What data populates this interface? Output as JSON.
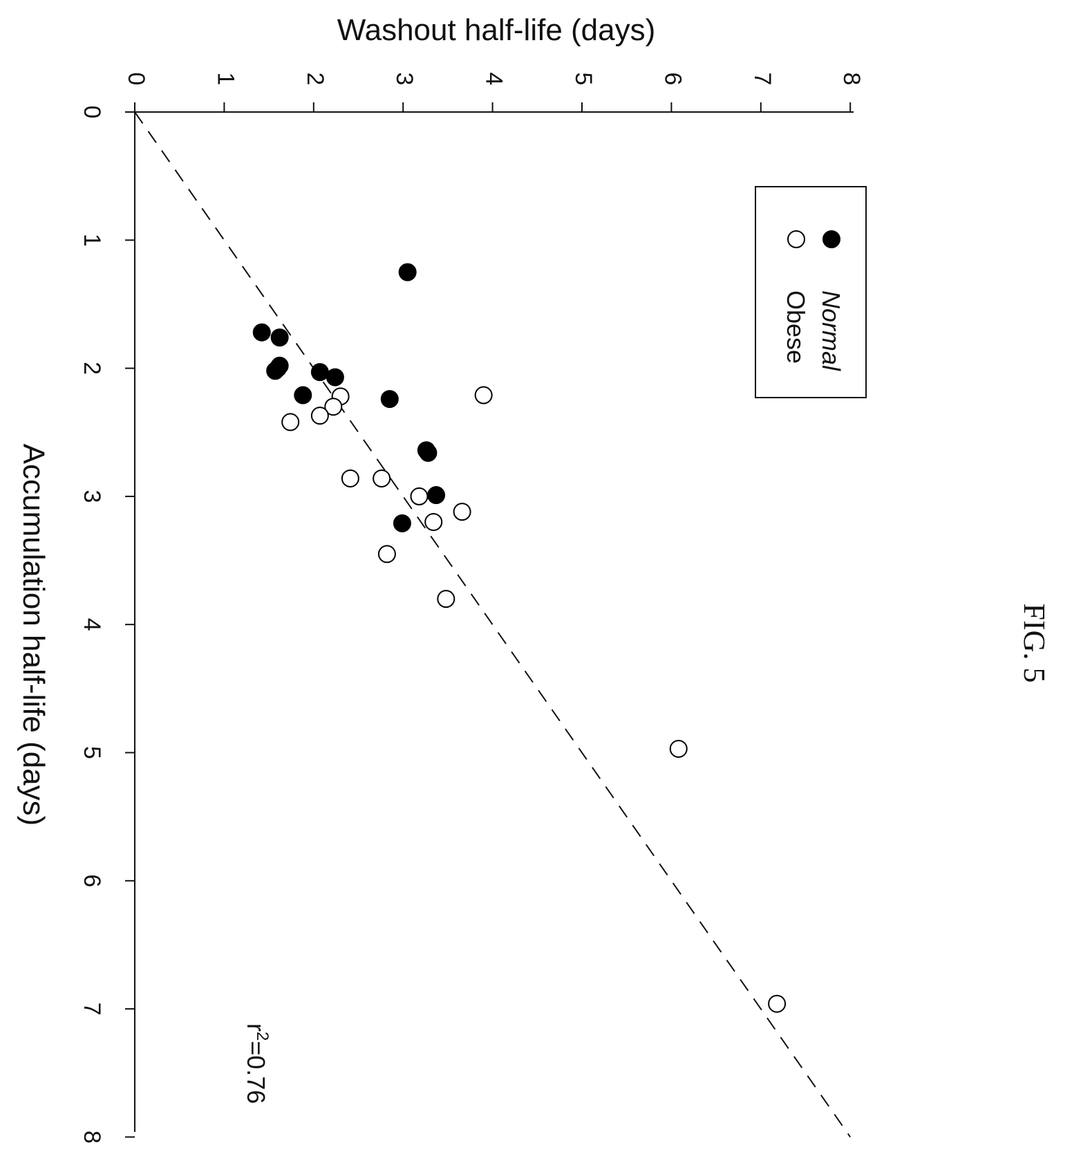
{
  "figure_label": "FIG. 5",
  "chart_data": {
    "type": "scatter",
    "xlabel": "Accumulation half-life (days)",
    "ylabel": "Washout half-life (days)",
    "xlim": [
      0,
      8
    ],
    "ylim": [
      0,
      8
    ],
    "x_ticks": [
      "0",
      "1",
      "2",
      "3",
      "4",
      "5",
      "6",
      "7",
      "8"
    ],
    "y_ticks": [
      "0",
      "1",
      "2",
      "3",
      "4",
      "5",
      "6",
      "7",
      "8"
    ],
    "legend_position": "top-left (rotated view)",
    "orientation": "rotated 90 degrees clockwise",
    "grid": false,
    "series": [
      {
        "name": "Normal",
        "marker": "filled-circle",
        "color": "#000000",
        "points": [
          {
            "x": 1.25,
            "y": 3.05
          },
          {
            "x": 1.72,
            "y": 1.42
          },
          {
            "x": 1.76,
            "y": 1.62
          },
          {
            "x": 1.98,
            "y": 1.62
          },
          {
            "x": 2.0,
            "y": 1.6
          },
          {
            "x": 2.02,
            "y": 1.57
          },
          {
            "x": 2.03,
            "y": 2.07
          },
          {
            "x": 2.07,
            "y": 2.24
          },
          {
            "x": 2.21,
            "y": 1.88
          },
          {
            "x": 2.24,
            "y": 2.85
          },
          {
            "x": 2.64,
            "y": 3.26
          },
          {
            "x": 2.66,
            "y": 3.28
          },
          {
            "x": 2.99,
            "y": 3.37
          },
          {
            "x": 3.21,
            "y": 2.99
          }
        ]
      },
      {
        "name": "Obese",
        "marker": "open-circle",
        "color": "#000000",
        "points": [
          {
            "x": 2.21,
            "y": 3.9
          },
          {
            "x": 2.22,
            "y": 2.3
          },
          {
            "x": 2.3,
            "y": 2.22
          },
          {
            "x": 2.37,
            "y": 2.07
          },
          {
            "x": 2.42,
            "y": 1.74
          },
          {
            "x": 2.86,
            "y": 2.41
          },
          {
            "x": 2.86,
            "y": 2.76
          },
          {
            "x": 3.0,
            "y": 3.18
          },
          {
            "x": 3.12,
            "y": 3.66
          },
          {
            "x": 3.2,
            "y": 3.34
          },
          {
            "x": 3.45,
            "y": 2.82
          },
          {
            "x": 3.8,
            "y": 3.48
          },
          {
            "x": 4.97,
            "y": 6.08
          },
          {
            "x": 6.96,
            "y": 7.18
          }
        ]
      }
    ],
    "fit_line": {
      "style": "dashed",
      "from": [
        0,
        0
      ],
      "to": [
        8,
        8
      ]
    },
    "annotation": {
      "base": "r",
      "superscript": "2",
      "rest": "=0.76"
    }
  }
}
